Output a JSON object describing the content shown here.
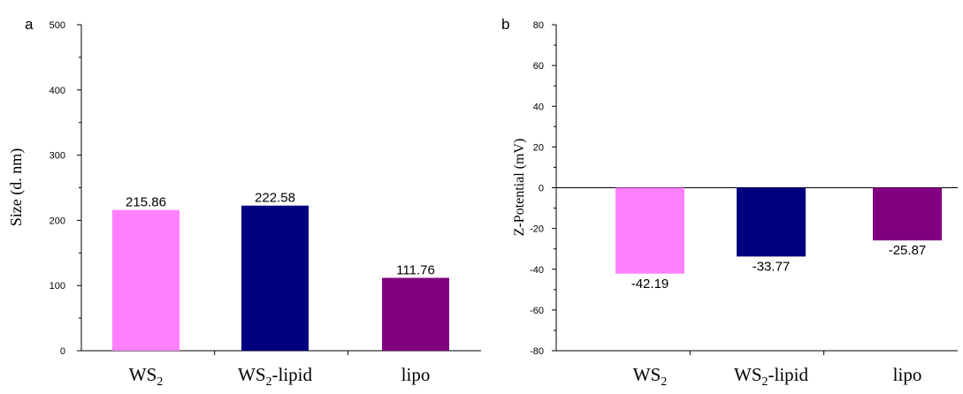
{
  "chart_data": [
    {
      "type": "bar",
      "panel": "a",
      "ylabel": "Size (d. nm)",
      "ylim": [
        0,
        500
      ],
      "yticks": [
        0,
        100,
        200,
        300,
        400,
        500
      ],
      "categories": [
        {
          "base": "WS",
          "sub": "2",
          "suffix": ""
        },
        {
          "base": "WS",
          "sub": "2",
          "suffix": "-lipid"
        },
        {
          "base": "lipo",
          "sub": "",
          "suffix": ""
        }
      ],
      "values": [
        215.86,
        222.58,
        111.76
      ],
      "value_labels": [
        "215.86",
        "222.58",
        "111.76"
      ],
      "colors": [
        "#ff80ff",
        "#000080",
        "#800080"
      ],
      "grid": false
    },
    {
      "type": "bar",
      "panel": "b",
      "ylabel": "Z-Potential (mV)",
      "ylim": [
        -80,
        80
      ],
      "yticks": [
        -80,
        -60,
        -40,
        -20,
        0,
        20,
        40,
        60,
        80
      ],
      "categories": [
        {
          "base": "WS",
          "sub": "2",
          "suffix": ""
        },
        {
          "base": "WS",
          "sub": "2",
          "suffix": "-lipid"
        },
        {
          "base": "lipo",
          "sub": "",
          "suffix": ""
        }
      ],
      "values": [
        -42.19,
        -33.77,
        -25.87
      ],
      "value_labels": [
        "-42.19",
        "-33.77",
        "-25.87"
      ],
      "colors": [
        "#ff80ff",
        "#000080",
        "#800080"
      ],
      "grid": false
    }
  ]
}
